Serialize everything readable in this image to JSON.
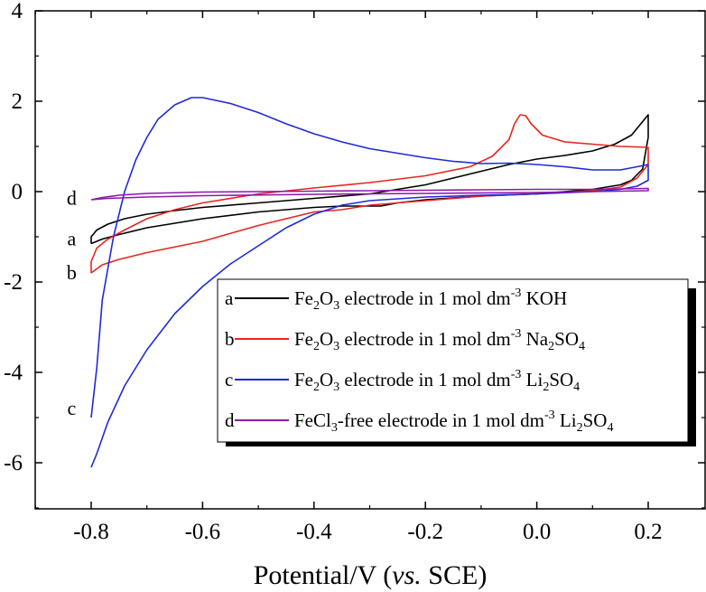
{
  "chart_data": {
    "type": "line",
    "xlabel_main": "Potential/V (",
    "xlabel_italic": "vs.",
    "xlabel_tail": " SCE)",
    "xlim": [
      -0.9,
      0.25
    ],
    "ylim": [
      -7,
      4
    ],
    "x_ticks": [
      "-0.8",
      "-0.6",
      "-0.4",
      "-0.2",
      "0.0",
      "0.2"
    ],
    "y_ticks": [
      "4",
      "2",
      "0",
      "-2",
      "-4",
      "-6"
    ],
    "curve_labels": [
      {
        "letter": "d",
        "x": -0.835,
        "y": -0.15
      },
      {
        "letter": "a",
        "x": -0.835,
        "y": -1.05
      },
      {
        "letter": "b",
        "x": -0.835,
        "y": -1.8
      },
      {
        "letter": "c",
        "x": -0.835,
        "y": -4.8
      }
    ],
    "legend": [
      {
        "letter": "a",
        "color": "#000000",
        "parts": [
          [
            "Fe",
            "n"
          ],
          [
            "2",
            "sub"
          ],
          [
            "O",
            "n"
          ],
          [
            "3",
            "sub"
          ],
          [
            " electrode in 1 mol dm",
            "n"
          ],
          [
            "-3",
            "sup"
          ],
          [
            " KOH",
            "n"
          ]
        ]
      },
      {
        "letter": "b",
        "color": "#e8251f",
        "parts": [
          [
            "Fe",
            "n"
          ],
          [
            "2",
            "sub"
          ],
          [
            "O",
            "n"
          ],
          [
            "3",
            "sub"
          ],
          [
            " electrode in 1 mol dm",
            "n"
          ],
          [
            "-3",
            "sup"
          ],
          [
            " Na",
            "n"
          ],
          [
            "2",
            "sub"
          ],
          [
            "SO",
            "n"
          ],
          [
            "4",
            "sub"
          ]
        ]
      },
      {
        "letter": "c",
        "color": "#1f2ad8",
        "parts": [
          [
            "Fe",
            "n"
          ],
          [
            "2",
            "sub"
          ],
          [
            "O",
            "n"
          ],
          [
            "3",
            "sub"
          ],
          [
            " electrode in 1 mol dm",
            "n"
          ],
          [
            "-3",
            "sup"
          ],
          [
            " Li",
            "n"
          ],
          [
            "2",
            "sub"
          ],
          [
            "SO",
            "n"
          ],
          [
            "4",
            "sub"
          ]
        ]
      },
      {
        "letter": "d",
        "color": "#8e1aa8",
        "parts": [
          [
            "FeCl",
            "n"
          ],
          [
            "3",
            "sub"
          ],
          [
            "-free electrode in 1 mol dm",
            "n"
          ],
          [
            "-3",
            "sup"
          ],
          [
            " Li",
            "n"
          ],
          [
            "2",
            "sub"
          ],
          [
            "SO",
            "n"
          ],
          [
            "4",
            "sub"
          ]
        ]
      }
    ],
    "series": [
      {
        "color": "#000000",
        "points": [
          [
            -0.8,
            -1.15
          ],
          [
            -0.8,
            -1.0
          ],
          [
            -0.79,
            -0.85
          ],
          [
            -0.77,
            -0.72
          ],
          [
            -0.74,
            -0.6
          ],
          [
            -0.7,
            -0.5
          ],
          [
            -0.65,
            -0.42
          ],
          [
            -0.6,
            -0.35
          ],
          [
            -0.5,
            -0.25
          ],
          [
            -0.4,
            -0.15
          ],
          [
            -0.3,
            -0.05
          ],
          [
            -0.25,
            0.05
          ],
          [
            -0.2,
            0.15
          ],
          [
            -0.15,
            0.3
          ],
          [
            -0.1,
            0.45
          ],
          [
            -0.05,
            0.6
          ],
          [
            0.0,
            0.72
          ],
          [
            0.05,
            0.8
          ],
          [
            0.1,
            0.9
          ],
          [
            0.14,
            1.05
          ],
          [
            0.17,
            1.25
          ],
          [
            0.2,
            1.7
          ],
          [
            0.2,
            1.2
          ],
          [
            0.19,
            0.5
          ],
          [
            0.17,
            0.25
          ],
          [
            0.15,
            0.15
          ],
          [
            0.1,
            0.05
          ],
          [
            0.05,
            0.0
          ],
          [
            0.0,
            -0.05
          ],
          [
            -0.1,
            -0.1
          ],
          [
            -0.2,
            -0.18
          ],
          [
            -0.25,
            -0.25
          ],
          [
            -0.28,
            -0.32
          ],
          [
            -0.3,
            -0.32
          ],
          [
            -0.35,
            -0.32
          ],
          [
            -0.4,
            -0.35
          ],
          [
            -0.5,
            -0.45
          ],
          [
            -0.6,
            -0.6
          ],
          [
            -0.7,
            -0.8
          ],
          [
            -0.75,
            -0.95
          ],
          [
            -0.78,
            -1.05
          ],
          [
            -0.8,
            -1.15
          ]
        ]
      },
      {
        "color": "#e8251f",
        "points": [
          [
            -0.8,
            -1.8
          ],
          [
            -0.8,
            -1.55
          ],
          [
            -0.79,
            -1.25
          ],
          [
            -0.77,
            -1.05
          ],
          [
            -0.74,
            -0.85
          ],
          [
            -0.7,
            -0.6
          ],
          [
            -0.65,
            -0.4
          ],
          [
            -0.6,
            -0.25
          ],
          [
            -0.5,
            -0.05
          ],
          [
            -0.4,
            0.08
          ],
          [
            -0.3,
            0.2
          ],
          [
            -0.2,
            0.35
          ],
          [
            -0.12,
            0.55
          ],
          [
            -0.08,
            0.78
          ],
          [
            -0.05,
            1.15
          ],
          [
            -0.04,
            1.5
          ],
          [
            -0.03,
            1.7
          ],
          [
            -0.02,
            1.68
          ],
          [
            -0.01,
            1.5
          ],
          [
            0.01,
            1.25
          ],
          [
            0.05,
            1.1
          ],
          [
            0.1,
            1.05
          ],
          [
            0.15,
            1.0
          ],
          [
            0.2,
            0.98
          ],
          [
            0.2,
            0.6
          ],
          [
            0.18,
            0.3
          ],
          [
            0.15,
            0.1
          ],
          [
            0.1,
            0.02
          ],
          [
            0.0,
            -0.05
          ],
          [
            -0.1,
            -0.1
          ],
          [
            -0.2,
            -0.2
          ],
          [
            -0.3,
            -0.3
          ],
          [
            -0.35,
            -0.4
          ],
          [
            -0.4,
            -0.45
          ],
          [
            -0.5,
            -0.75
          ],
          [
            -0.6,
            -1.1
          ],
          [
            -0.7,
            -1.35
          ],
          [
            -0.75,
            -1.5
          ],
          [
            -0.78,
            -1.62
          ],
          [
            -0.8,
            -1.8
          ]
        ]
      },
      {
        "color": "#1f2ad8",
        "points": [
          [
            -0.8,
            -5.0
          ],
          [
            -0.79,
            -3.9
          ],
          [
            -0.78,
            -2.4
          ],
          [
            -0.76,
            -1.0
          ],
          [
            -0.74,
            0.0
          ],
          [
            -0.72,
            0.7
          ],
          [
            -0.7,
            1.2
          ],
          [
            -0.68,
            1.6
          ],
          [
            -0.65,
            1.92
          ],
          [
            -0.62,
            2.08
          ],
          [
            -0.6,
            2.08
          ],
          [
            -0.55,
            1.95
          ],
          [
            -0.5,
            1.75
          ],
          [
            -0.45,
            1.5
          ],
          [
            -0.4,
            1.28
          ],
          [
            -0.35,
            1.1
          ],
          [
            -0.3,
            0.95
          ],
          [
            -0.25,
            0.85
          ],
          [
            -0.2,
            0.75
          ],
          [
            -0.15,
            0.67
          ],
          [
            -0.1,
            0.62
          ],
          [
            -0.05,
            0.63
          ],
          [
            0.0,
            0.6
          ],
          [
            0.05,
            0.55
          ],
          [
            0.1,
            0.48
          ],
          [
            0.15,
            0.48
          ],
          [
            0.18,
            0.55
          ],
          [
            0.2,
            0.6
          ],
          [
            0.2,
            0.25
          ],
          [
            0.18,
            0.12
          ],
          [
            0.15,
            0.05
          ],
          [
            0.1,
            0.0
          ],
          [
            0.0,
            -0.05
          ],
          [
            -0.1,
            -0.08
          ],
          [
            -0.2,
            -0.12
          ],
          [
            -0.3,
            -0.2
          ],
          [
            -0.35,
            -0.3
          ],
          [
            -0.4,
            -0.5
          ],
          [
            -0.45,
            -0.8
          ],
          [
            -0.5,
            -1.2
          ],
          [
            -0.55,
            -1.6
          ],
          [
            -0.6,
            -2.1
          ],
          [
            -0.65,
            -2.7
          ],
          [
            -0.7,
            -3.5
          ],
          [
            -0.74,
            -4.3
          ],
          [
            -0.77,
            -5.1
          ],
          [
            -0.79,
            -5.8
          ],
          [
            -0.8,
            -6.1
          ]
        ]
      },
      {
        "color": "#8e1aa8",
        "points": [
          [
            -0.8,
            -0.18
          ],
          [
            -0.78,
            -0.13
          ],
          [
            -0.75,
            -0.08
          ],
          [
            -0.7,
            -0.04
          ],
          [
            -0.6,
            -0.01
          ],
          [
            -0.5,
            0.0
          ],
          [
            -0.4,
            0.01
          ],
          [
            -0.3,
            0.02
          ],
          [
            -0.2,
            0.03
          ],
          [
            -0.1,
            0.04
          ],
          [
            0.0,
            0.05
          ],
          [
            0.1,
            0.05
          ],
          [
            0.2,
            0.07
          ],
          [
            0.2,
            0.02
          ],
          [
            0.1,
            0.0
          ],
          [
            0.0,
            -0.02
          ],
          [
            -0.2,
            -0.04
          ],
          [
            -0.4,
            -0.06
          ],
          [
            -0.6,
            -0.09
          ],
          [
            -0.7,
            -0.12
          ],
          [
            -0.77,
            -0.15
          ],
          [
            -0.8,
            -0.18
          ]
        ]
      }
    ]
  }
}
